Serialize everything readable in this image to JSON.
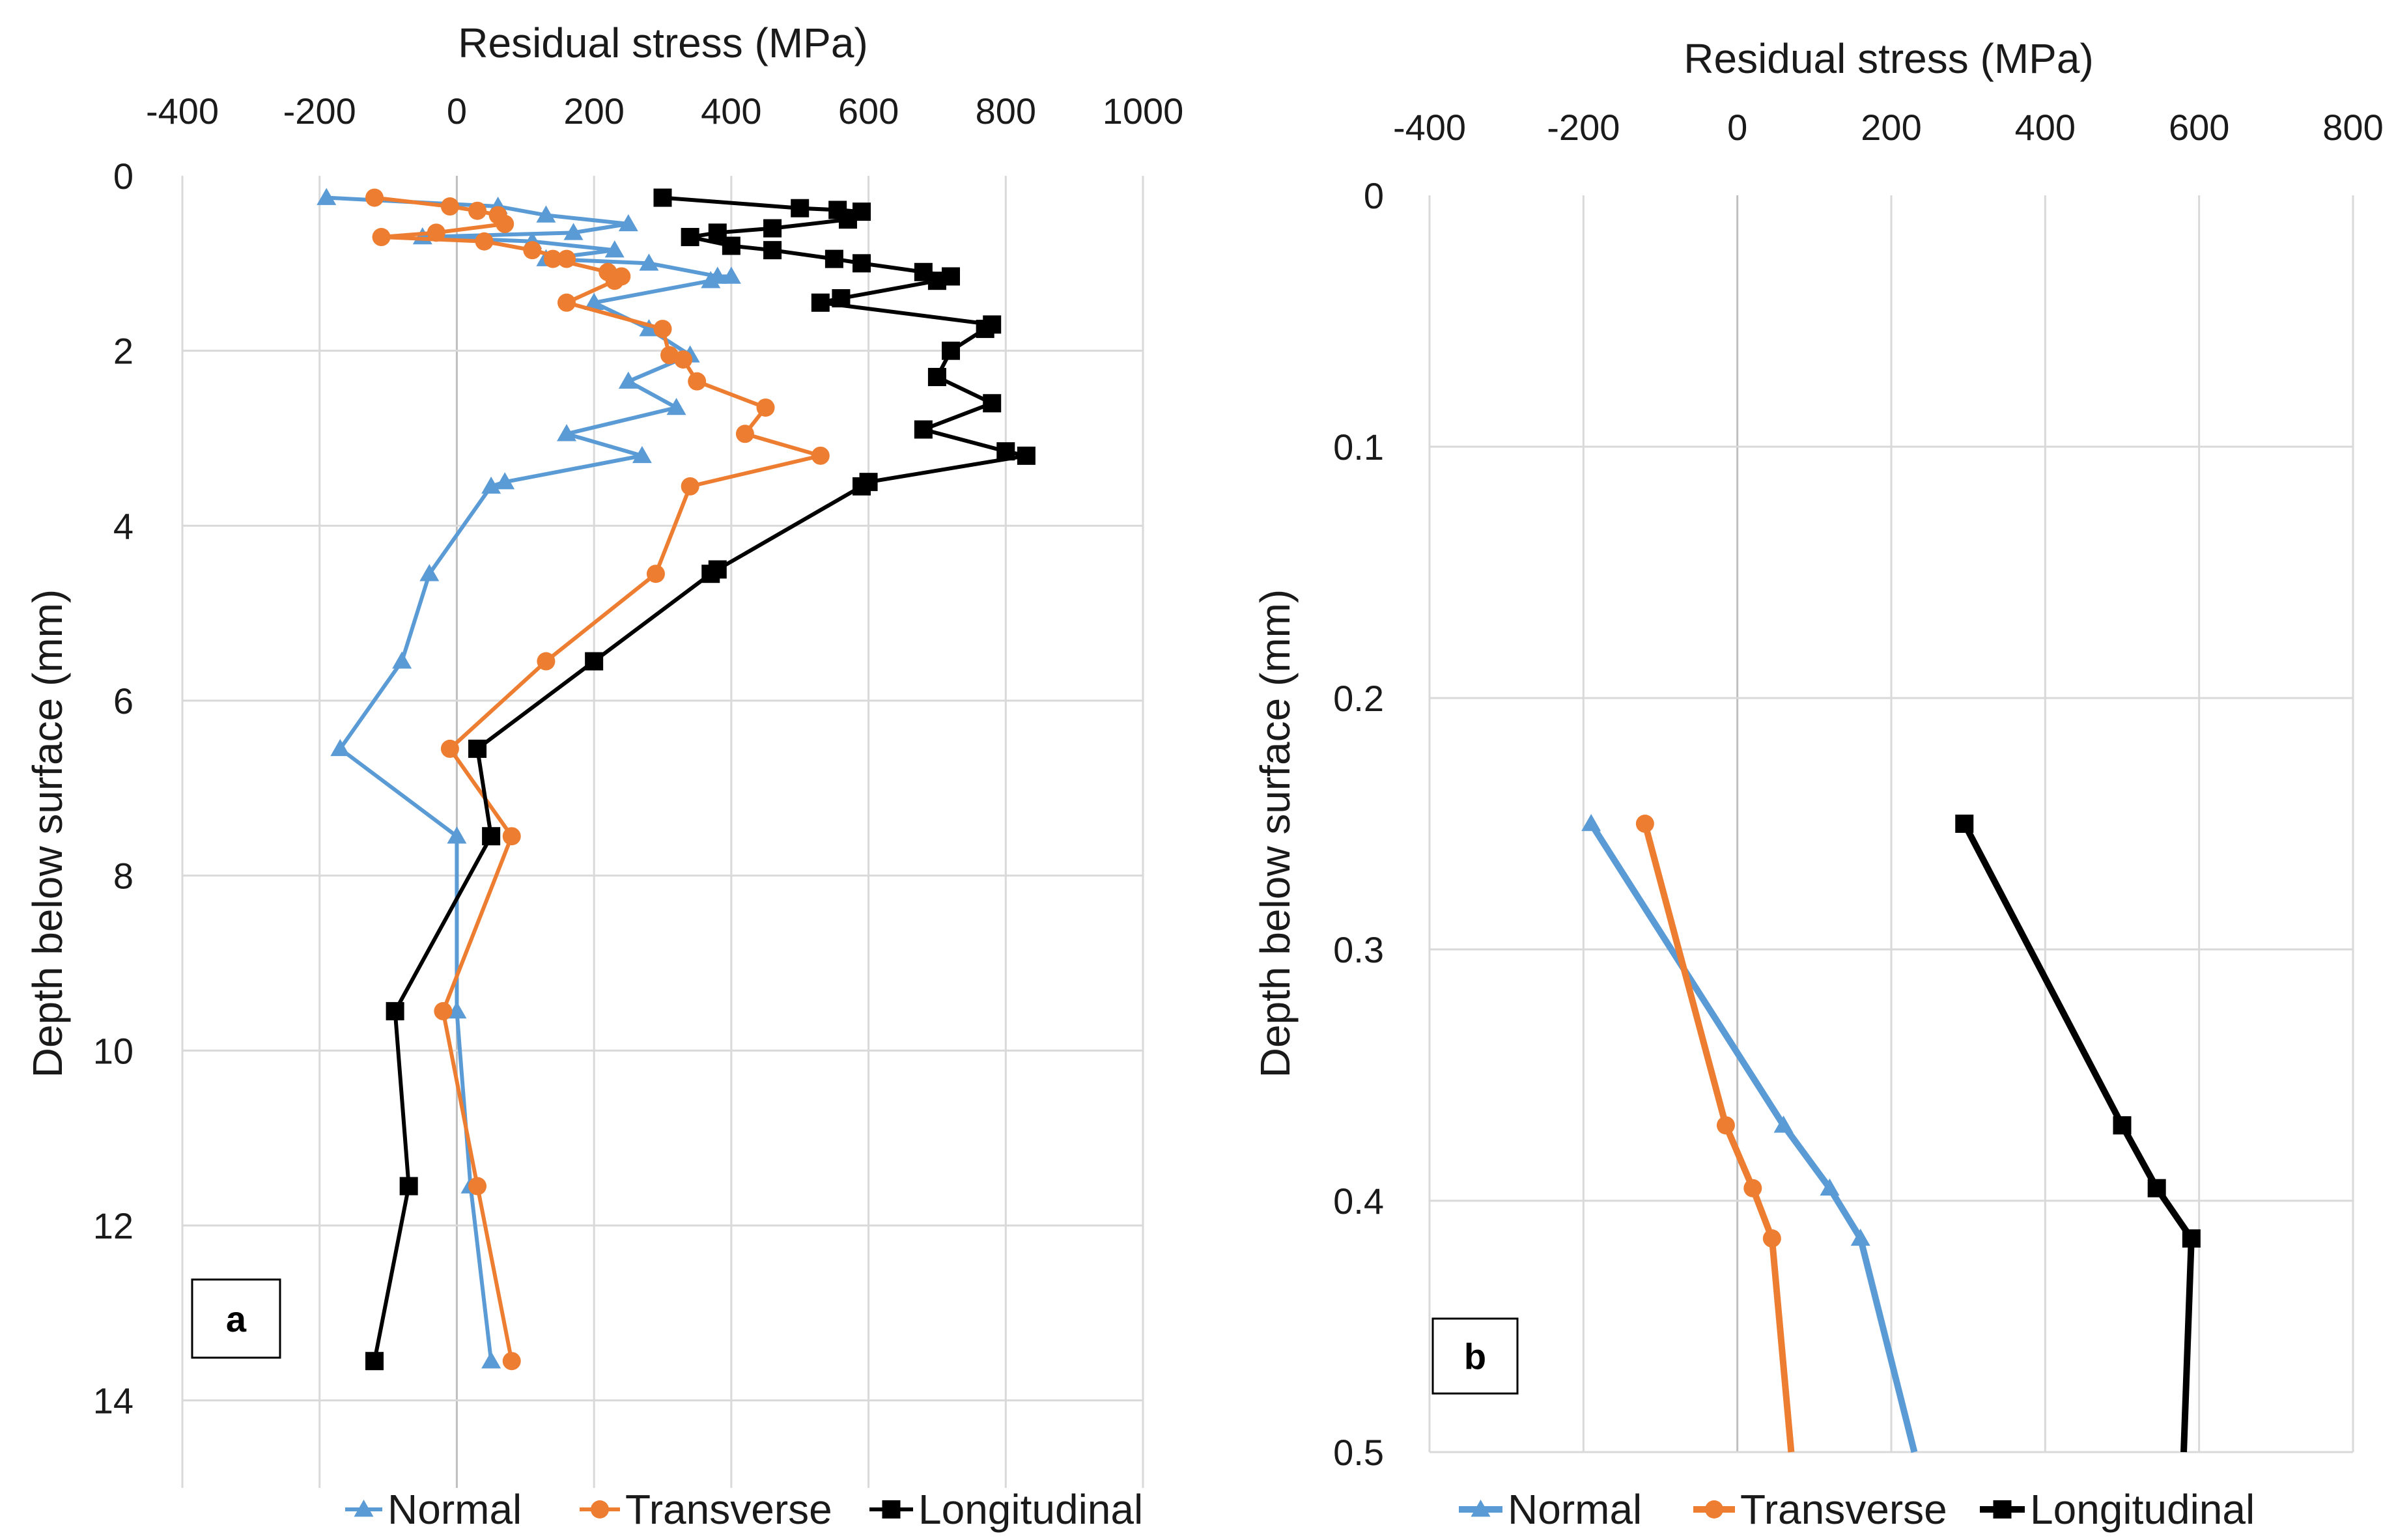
{
  "chart_data": [
    {
      "type": "line",
      "panel_label": "a",
      "xlabel": "Residual stress (MPa)",
      "ylabel": "Depth below surface (mm)",
      "xlim": [
        -400,
        1000
      ],
      "ylim": [
        0,
        15
      ],
      "x_axis_position": "top",
      "y_axis_inverted": true,
      "grid": true,
      "xticks": [
        -400,
        -200,
        0,
        200,
        400,
        600,
        800,
        1000
      ],
      "xtick_labels": [
        "-400",
        "-200",
        "0",
        "200",
        "400",
        "600",
        "800",
        "1000"
      ],
      "yticks": [
        0,
        2,
        4,
        6,
        8,
        10,
        12,
        14
      ],
      "ytick_labels": [
        "0",
        "2",
        "4",
        "6",
        "8",
        "10",
        "12",
        "14"
      ],
      "legend": "bottom",
      "series": [
        {
          "name": "Normal",
          "color": "#5b9bd5",
          "marker": "triangle",
          "points": [
            [
              -190,
              0.25
            ],
            [
              60,
              0.35
            ],
            [
              130,
              0.45
            ],
            [
              250,
              0.55
            ],
            [
              170,
              0.65
            ],
            [
              -50,
              0.7
            ],
            [
              110,
              0.75
            ],
            [
              230,
              0.85
            ],
            [
              130,
              0.95
            ],
            [
              280,
              1.0
            ],
            [
              380,
              1.15
            ],
            [
              400,
              1.15
            ],
            [
              370,
              1.2
            ],
            [
              200,
              1.45
            ],
            [
              280,
              1.75
            ],
            [
              340,
              2.05
            ],
            [
              250,
              2.35
            ],
            [
              320,
              2.65
            ],
            [
              160,
              2.95
            ],
            [
              270,
              3.2
            ],
            [
              70,
              3.5
            ],
            [
              50,
              3.55
            ],
            [
              -40,
              4.55
            ],
            [
              -80,
              5.55
            ],
            [
              -170,
              6.55
            ],
            [
              0,
              7.55
            ],
            [
              0,
              9.55
            ],
            [
              20,
              11.55
            ],
            [
              50,
              13.55
            ]
          ]
        },
        {
          "name": "Transverse",
          "color": "#ed7d31",
          "marker": "circle",
          "points": [
            [
              -120,
              0.25
            ],
            [
              -10,
              0.35
            ],
            [
              30,
              0.4
            ],
            [
              60,
              0.45
            ],
            [
              70,
              0.55
            ],
            [
              -30,
              0.65
            ],
            [
              -110,
              0.7
            ],
            [
              40,
              0.75
            ],
            [
              110,
              0.85
            ],
            [
              160,
              0.95
            ],
            [
              140,
              0.95
            ],
            [
              220,
              1.1
            ],
            [
              240,
              1.15
            ],
            [
              230,
              1.2
            ],
            [
              160,
              1.45
            ],
            [
              300,
              1.75
            ],
            [
              310,
              2.05
            ],
            [
              330,
              2.1
            ],
            [
              350,
              2.35
            ],
            [
              450,
              2.65
            ],
            [
              420,
              2.95
            ],
            [
              530,
              3.2
            ],
            [
              340,
              3.55
            ],
            [
              290,
              4.55
            ],
            [
              130,
              5.55
            ],
            [
              -10,
              6.55
            ],
            [
              80,
              7.55
            ],
            [
              -20,
              9.55
            ],
            [
              30,
              11.55
            ],
            [
              80,
              13.55
            ]
          ]
        },
        {
          "name": "Longitudinal",
          "color": "#000000",
          "marker": "square",
          "points": [
            [
              300,
              0.25
            ],
            [
              500,
              0.37
            ],
            [
              555,
              0.39
            ],
            [
              590,
              0.41
            ],
            [
              570,
              0.5
            ],
            [
              460,
              0.6
            ],
            [
              380,
              0.65
            ],
            [
              340,
              0.7
            ],
            [
              400,
              0.8
            ],
            [
              460,
              0.85
            ],
            [
              550,
              0.95
            ],
            [
              590,
              1.0
            ],
            [
              680,
              1.1
            ],
            [
              720,
              1.15
            ],
            [
              700,
              1.2
            ],
            [
              560,
              1.4
            ],
            [
              530,
              1.45
            ],
            [
              780,
              1.7
            ],
            [
              770,
              1.75
            ],
            [
              720,
              2.0
            ],
            [
              700,
              2.3
            ],
            [
              780,
              2.6
            ],
            [
              680,
              2.9
            ],
            [
              800,
              3.15
            ],
            [
              830,
              3.2
            ],
            [
              600,
              3.5
            ],
            [
              590,
              3.55
            ],
            [
              380,
              4.5
            ],
            [
              370,
              4.55
            ],
            [
              200,
              5.55
            ],
            [
              30,
              6.55
            ],
            [
              50,
              7.55
            ],
            [
              -90,
              9.55
            ],
            [
              -70,
              11.55
            ],
            [
              -120,
              13.55
            ]
          ]
        }
      ]
    },
    {
      "type": "line",
      "panel_label": "b",
      "xlabel": "Residual stress (MPa)",
      "ylabel": "Depth below surface (mm)",
      "xlim": [
        -400,
        800
      ],
      "ylim": [
        0,
        0.5
      ],
      "x_axis_position": "top",
      "y_axis_inverted": true,
      "grid": true,
      "xticks": [
        -400,
        -200,
        0,
        200,
        400,
        600,
        800
      ],
      "xtick_labels": [
        "-400",
        "-200",
        "0",
        "200",
        "400",
        "600",
        "800"
      ],
      "yticks": [
        0,
        0.1,
        0.2,
        0.3,
        0.4,
        0.5
      ],
      "ytick_labels": [
        "0",
        "0.1",
        "0.2",
        "0.3",
        "0.4",
        "0.5"
      ],
      "legend": "bottom",
      "series": [
        {
          "name": "Normal",
          "color": "#5b9bd5",
          "marker": "triangle",
          "points": [
            [
              -190,
              0.25
            ],
            [
              60,
              0.37
            ],
            [
              120,
              0.395
            ],
            [
              160,
              0.415
            ],
            [
              230,
              0.5
            ]
          ]
        },
        {
          "name": "Transverse",
          "color": "#ed7d31",
          "marker": "circle",
          "points": [
            [
              -120,
              0.25
            ],
            [
              -15,
              0.37
            ],
            [
              20,
              0.395
            ],
            [
              45,
              0.415
            ],
            [
              70,
              0.5
            ]
          ]
        },
        {
          "name": "Longitudinal",
          "color": "#000000",
          "marker": "square",
          "points": [
            [
              295,
              0.25
            ],
            [
              500,
              0.37
            ],
            [
              545,
              0.395
            ],
            [
              590,
              0.415
            ],
            [
              580,
              0.5
            ]
          ]
        }
      ]
    }
  ]
}
